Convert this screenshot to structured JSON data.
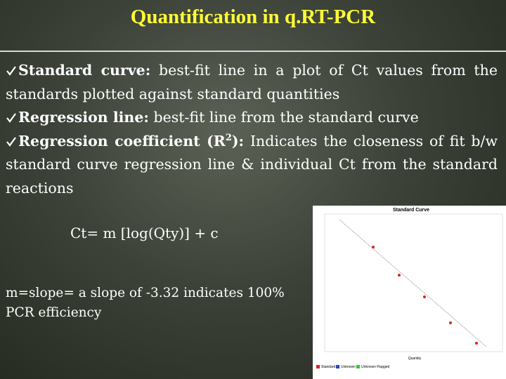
{
  "title": "Quantification in q.RT-PCR",
  "bullets": [
    {
      "term": "Standard curve:",
      "text": " best-fit line in a plot of Ct values from the standards plotted against standard quantities"
    },
    {
      "term": "Regression line:",
      "text": " best-fit line from the standard curve"
    },
    {
      "term": "Regression coefficient (R",
      "sup": "2",
      "term_end": "):",
      "text": " Indicates the closeness of fit b/w standard curve regression line & individual Ct from the standard reactions"
    }
  ],
  "formula": "Ct= m  [log(Qty)] + c",
  "note": "m=slope= a slope of -3.32 indicates 100% PCR efficiency",
  "inset": {
    "title": "Standard Curve",
    "x_label": "Quantity",
    "legend": [
      "Standard",
      "Unknown",
      "Unknown Flagged"
    ]
  }
}
